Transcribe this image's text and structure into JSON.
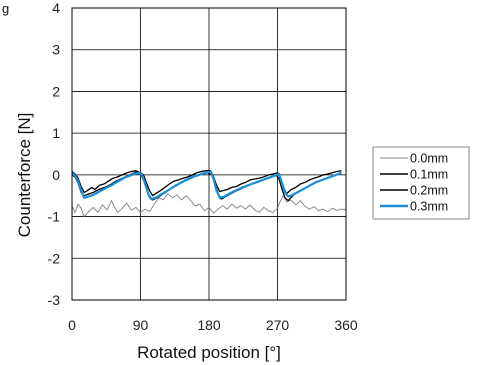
{
  "figure_label": "g",
  "chart_data": {
    "type": "line",
    "xlabel": "Rotated position [°]",
    "ylabel": "Counterforce [N]",
    "xlim": [
      0,
      360
    ],
    "ylim": [
      -3,
      4
    ],
    "xticks": [
      0,
      90,
      180,
      270,
      360
    ],
    "yticks": [
      -3,
      -2,
      -1,
      0,
      1,
      2,
      3,
      4
    ],
    "grid": true,
    "legend": {
      "placement": "right"
    },
    "series": [
      {
        "name": "0.0mm",
        "color": "#808080",
        "points": [
          [
            0,
            -0.75
          ],
          [
            4,
            -0.9
          ],
          [
            8,
            -0.7
          ],
          [
            12,
            -0.8
          ],
          [
            16,
            -1.0
          ],
          [
            22,
            -0.88
          ],
          [
            28,
            -0.78
          ],
          [
            34,
            -0.9
          ],
          [
            40,
            -0.72
          ],
          [
            46,
            -0.84
          ],
          [
            52,
            -0.62
          ],
          [
            56,
            -0.78
          ],
          [
            60,
            -0.9
          ],
          [
            66,
            -0.8
          ],
          [
            72,
            -0.68
          ],
          [
            78,
            -0.85
          ],
          [
            84,
            -0.78
          ],
          [
            90,
            -0.9
          ],
          [
            96,
            -0.82
          ],
          [
            102,
            -0.88
          ],
          [
            108,
            -0.7
          ],
          [
            114,
            -0.55
          ],
          [
            120,
            -0.6
          ],
          [
            126,
            -0.45
          ],
          [
            132,
            -0.55
          ],
          [
            138,
            -0.48
          ],
          [
            144,
            -0.6
          ],
          [
            150,
            -0.5
          ],
          [
            156,
            -0.62
          ],
          [
            162,
            -0.75
          ],
          [
            168,
            -0.7
          ],
          [
            174,
            -0.86
          ],
          [
            180,
            -0.78
          ],
          [
            186,
            -0.92
          ],
          [
            192,
            -0.82
          ],
          [
            198,
            -0.74
          ],
          [
            204,
            -0.82
          ],
          [
            210,
            -0.7
          ],
          [
            216,
            -0.8
          ],
          [
            222,
            -0.74
          ],
          [
            228,
            -0.82
          ],
          [
            234,
            -0.72
          ],
          [
            240,
            -0.84
          ],
          [
            246,
            -0.9
          ],
          [
            252,
            -0.78
          ],
          [
            258,
            -0.86
          ],
          [
            264,
            -0.9
          ],
          [
            270,
            -0.8
          ],
          [
            274,
            -0.62
          ],
          [
            278,
            -0.5
          ],
          [
            282,
            -0.65
          ],
          [
            288,
            -0.6
          ],
          [
            294,
            -0.72
          ],
          [
            300,
            -0.62
          ],
          [
            306,
            -0.75
          ],
          [
            312,
            -0.82
          ],
          [
            318,
            -0.76
          ],
          [
            324,
            -0.86
          ],
          [
            330,
            -0.82
          ],
          [
            336,
            -0.88
          ],
          [
            342,
            -0.8
          ],
          [
            348,
            -0.85
          ],
          [
            354,
            -0.82
          ],
          [
            360,
            -0.84
          ]
        ]
      },
      {
        "name": "0.1mm",
        "color": "#000000",
        "points": [
          [
            0,
            0.08
          ],
          [
            4,
            0.02
          ],
          [
            8,
            -0.08
          ],
          [
            12,
            -0.28
          ],
          [
            16,
            -0.42
          ],
          [
            20,
            -0.38
          ],
          [
            26,
            -0.3
          ],
          [
            30,
            -0.35
          ],
          [
            36,
            -0.25
          ],
          [
            42,
            -0.22
          ],
          [
            48,
            -0.15
          ],
          [
            54,
            -0.08
          ],
          [
            60,
            -0.05
          ],
          [
            66,
            0.0
          ],
          [
            72,
            0.05
          ],
          [
            78,
            0.08
          ],
          [
            84,
            0.1
          ],
          [
            90,
            0.05
          ],
          [
            94,
            0.0
          ],
          [
            98,
            -0.2
          ],
          [
            102,
            -0.38
          ],
          [
            106,
            -0.5
          ],
          [
            110,
            -0.45
          ],
          [
            116,
            -0.38
          ],
          [
            122,
            -0.3
          ],
          [
            128,
            -0.22
          ],
          [
            134,
            -0.15
          ],
          [
            140,
            -0.12
          ],
          [
            146,
            -0.08
          ],
          [
            152,
            -0.05
          ],
          [
            158,
            0.0
          ],
          [
            164,
            0.05
          ],
          [
            170,
            0.08
          ],
          [
            176,
            0.1
          ],
          [
            182,
            0.1
          ],
          [
            186,
            -0.05
          ],
          [
            190,
            -0.25
          ],
          [
            194,
            -0.4
          ],
          [
            198,
            -0.38
          ],
          [
            204,
            -0.35
          ],
          [
            210,
            -0.3
          ],
          [
            216,
            -0.28
          ],
          [
            222,
            -0.22
          ],
          [
            228,
            -0.18
          ],
          [
            234,
            -0.12
          ],
          [
            240,
            -0.1
          ],
          [
            246,
            -0.08
          ],
          [
            252,
            -0.05
          ],
          [
            258,
            0.0
          ],
          [
            264,
            0.02
          ],
          [
            270,
            0.05
          ],
          [
            274,
            -0.1
          ],
          [
            278,
            -0.3
          ],
          [
            282,
            -0.45
          ],
          [
            288,
            -0.35
          ],
          [
            294,
            -0.3
          ],
          [
            300,
            -0.22
          ],
          [
            306,
            -0.18
          ],
          [
            312,
            -0.12
          ],
          [
            318,
            -0.08
          ],
          [
            324,
            -0.05
          ],
          [
            330,
            0.0
          ],
          [
            336,
            0.02
          ],
          [
            342,
            0.05
          ],
          [
            348,
            0.08
          ],
          [
            354,
            0.1
          ]
        ]
      },
      {
        "name": "0.2mm",
        "color": "#000000",
        "points": [
          [
            0,
            0.0
          ],
          [
            4,
            -0.05
          ],
          [
            8,
            -0.2
          ],
          [
            12,
            -0.42
          ],
          [
            16,
            -0.5
          ],
          [
            22,
            -0.46
          ],
          [
            28,
            -0.42
          ],
          [
            34,
            -0.36
          ],
          [
            40,
            -0.32
          ],
          [
            46,
            -0.28
          ],
          [
            52,
            -0.22
          ],
          [
            58,
            -0.15
          ],
          [
            64,
            -0.1
          ],
          [
            70,
            -0.05
          ],
          [
            76,
            0.0
          ],
          [
            82,
            0.05
          ],
          [
            86,
            0.08
          ],
          [
            90,
            0.02
          ],
          [
            94,
            -0.12
          ],
          [
            98,
            -0.35
          ],
          [
            102,
            -0.55
          ],
          [
            106,
            -0.6
          ],
          [
            112,
            -0.55
          ],
          [
            118,
            -0.48
          ],
          [
            124,
            -0.4
          ],
          [
            130,
            -0.32
          ],
          [
            136,
            -0.25
          ],
          [
            142,
            -0.2
          ],
          [
            148,
            -0.15
          ],
          [
            154,
            -0.1
          ],
          [
            160,
            -0.05
          ],
          [
            166,
            0.0
          ],
          [
            172,
            0.02
          ],
          [
            178,
            0.05
          ],
          [
            184,
            0.0
          ],
          [
            188,
            -0.2
          ],
          [
            192,
            -0.45
          ],
          [
            196,
            -0.58
          ],
          [
            202,
            -0.52
          ],
          [
            208,
            -0.46
          ],
          [
            214,
            -0.4
          ],
          [
            220,
            -0.35
          ],
          [
            226,
            -0.3
          ],
          [
            232,
            -0.25
          ],
          [
            238,
            -0.2
          ],
          [
            244,
            -0.16
          ],
          [
            250,
            -0.12
          ],
          [
            256,
            -0.08
          ],
          [
            262,
            -0.05
          ],
          [
            268,
            0.0
          ],
          [
            272,
            -0.1
          ],
          [
            276,
            -0.35
          ],
          [
            280,
            -0.55
          ],
          [
            284,
            -0.62
          ],
          [
            290,
            -0.5
          ],
          [
            296,
            -0.42
          ],
          [
            302,
            -0.36
          ],
          [
            308,
            -0.3
          ],
          [
            314,
            -0.24
          ],
          [
            320,
            -0.18
          ],
          [
            326,
            -0.14
          ],
          [
            332,
            -0.1
          ],
          [
            338,
            -0.06
          ],
          [
            344,
            -0.02
          ],
          [
            350,
            0.02
          ],
          [
            354,
            0.05
          ]
        ]
      },
      {
        "name": "0.3mm",
        "color": "#1a8fd6",
        "points": [
          [
            0,
            0.05
          ],
          [
            4,
            -0.02
          ],
          [
            8,
            -0.15
          ],
          [
            12,
            -0.38
          ],
          [
            16,
            -0.55
          ],
          [
            22,
            -0.52
          ],
          [
            28,
            -0.48
          ],
          [
            34,
            -0.42
          ],
          [
            40,
            -0.36
          ],
          [
            46,
            -0.3
          ],
          [
            52,
            -0.25
          ],
          [
            58,
            -0.18
          ],
          [
            64,
            -0.12
          ],
          [
            70,
            -0.06
          ],
          [
            76,
            -0.02
          ],
          [
            82,
            0.02
          ],
          [
            88,
            0.05
          ],
          [
            92,
            0.0
          ],
          [
            96,
            -0.2
          ],
          [
            100,
            -0.45
          ],
          [
            104,
            -0.58
          ],
          [
            110,
            -0.55
          ],
          [
            116,
            -0.48
          ],
          [
            122,
            -0.42
          ],
          [
            128,
            -0.35
          ],
          [
            134,
            -0.28
          ],
          [
            140,
            -0.22
          ],
          [
            146,
            -0.16
          ],
          [
            152,
            -0.1
          ],
          [
            158,
            -0.05
          ],
          [
            164,
            -0.02
          ],
          [
            170,
            0.02
          ],
          [
            176,
            0.05
          ],
          [
            182,
            0.08
          ],
          [
            186,
            -0.1
          ],
          [
            190,
            -0.38
          ],
          [
            194,
            -0.55
          ],
          [
            200,
            -0.52
          ],
          [
            206,
            -0.46
          ],
          [
            212,
            -0.4
          ],
          [
            218,
            -0.35
          ],
          [
            224,
            -0.3
          ],
          [
            230,
            -0.26
          ],
          [
            236,
            -0.22
          ],
          [
            242,
            -0.18
          ],
          [
            248,
            -0.14
          ],
          [
            254,
            -0.1
          ],
          [
            260,
            -0.06
          ],
          [
            266,
            -0.02
          ],
          [
            272,
            0.02
          ],
          [
            276,
            -0.2
          ],
          [
            280,
            -0.42
          ],
          [
            284,
            -0.52
          ],
          [
            290,
            -0.48
          ],
          [
            296,
            -0.42
          ],
          [
            302,
            -0.36
          ],
          [
            308,
            -0.3
          ],
          [
            314,
            -0.24
          ],
          [
            320,
            -0.18
          ],
          [
            326,
            -0.14
          ],
          [
            332,
            -0.1
          ],
          [
            338,
            -0.06
          ],
          [
            344,
            -0.02
          ],
          [
            350,
            0.02
          ],
          [
            354,
            0.05
          ]
        ]
      }
    ]
  }
}
